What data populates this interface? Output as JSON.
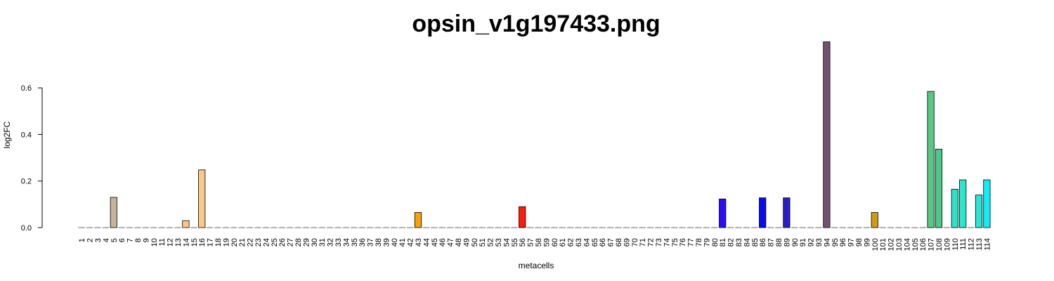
{
  "chart_data": {
    "type": "bar",
    "title": "opsin_v1g197433.png",
    "xlabel": "metacells",
    "ylabel": "log2FC",
    "ylim": [
      0,
      0.8
    ],
    "yticks": [
      "0.0",
      "0.2",
      "0.4",
      "0.6"
    ],
    "grid": false,
    "categories": [
      "1",
      "2",
      "3",
      "4",
      "5",
      "6",
      "7",
      "8",
      "9",
      "10",
      "11",
      "12",
      "13",
      "14",
      "15",
      "16",
      "17",
      "18",
      "19",
      "20",
      "21",
      "22",
      "23",
      "24",
      "25",
      "26",
      "27",
      "28",
      "29",
      "30",
      "31",
      "32",
      "33",
      "34",
      "35",
      "36",
      "37",
      "38",
      "39",
      "40",
      "41",
      "42",
      "43",
      "44",
      "45",
      "46",
      "47",
      "48",
      "49",
      "50",
      "51",
      "52",
      "53",
      "54",
      "55",
      "56",
      "57",
      "58",
      "59",
      "60",
      "61",
      "62",
      "63",
      "64",
      "65",
      "66",
      "67",
      "68",
      "69",
      "70",
      "71",
      "72",
      "73",
      "74",
      "75",
      "76",
      "77",
      "78",
      "79",
      "80",
      "81",
      "82",
      "83",
      "84",
      "85",
      "86",
      "87",
      "88",
      "89",
      "90",
      "91",
      "92",
      "93",
      "94",
      "95",
      "96",
      "97",
      "98",
      "99",
      "100",
      "101",
      "102",
      "103",
      "104",
      "105",
      "106",
      "107",
      "108",
      "109",
      "110",
      "111",
      "112",
      "113",
      "114"
    ],
    "values": [
      0,
      0,
      0,
      0,
      0.13,
      0,
      0,
      0,
      0,
      0,
      0,
      0,
      0,
      0.03,
      0,
      0.248,
      0,
      0,
      0,
      0,
      0,
      0,
      0,
      0,
      0,
      0,
      0,
      0,
      0,
      0,
      0,
      0,
      0,
      0,
      0,
      0,
      0,
      0,
      0,
      0,
      0,
      0,
      0.065,
      0,
      0,
      0,
      0,
      0,
      0,
      0,
      0,
      0,
      0,
      0,
      0,
      0.09,
      0,
      0,
      0,
      0,
      0,
      0,
      0,
      0,
      0,
      0,
      0,
      0,
      0,
      0,
      0,
      0,
      0,
      0,
      0,
      0,
      0,
      0,
      0,
      0,
      0.123,
      0,
      0,
      0,
      0,
      0.128,
      0,
      0,
      0.128,
      0,
      0,
      0,
      0,
      0.798,
      0,
      0,
      0,
      0,
      0,
      0.065,
      0,
      0,
      0,
      0,
      0,
      0,
      0.585,
      0.337,
      0,
      0.165,
      0.205,
      0,
      0.14,
      0.205
    ],
    "colors": {
      "5": "#c5b3a0",
      "14": "#f9c78a",
      "16": "#f9c78a",
      "43": "#f7a00a",
      "56": "#ff1a0a",
      "81": "#2c0dff",
      "86": "#0a0af5",
      "89": "#2b1ed0",
      "94": "#735270",
      "100": "#d09a14",
      "107": "#56c882",
      "108": "#4ec88a",
      "110": "#2ee0c8",
      "111": "#2ae6cc",
      "113": "#28e6d2",
      "114": "#12ecf6"
    },
    "zero_bar_color": "#b8b8b8"
  }
}
